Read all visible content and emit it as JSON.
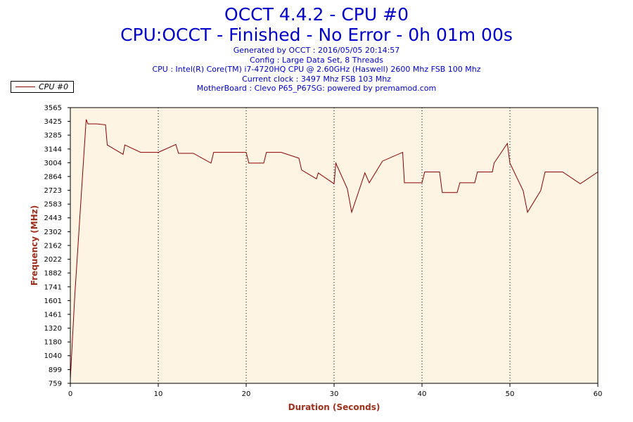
{
  "header": {
    "title": "OCCT 4.4.2 - CPU #0",
    "subtitle": "CPU:OCCT - Finished - No Error - 0h 01m 00s",
    "info": [
      "Generated by OCCT : 2016/05/05 20:14:57",
      "Config : Large Data Set, 8 Threads",
      "CPU : Intel(R) Core(TM) i7-4720HQ CPU @ 2.60GHz (Haswell) 2600 Mhz FSB 100 Mhz",
      "Current clock : 3497 Mhz FSB 103 Mhz",
      "MotherBoard : Clevo P65_P67SG: powered by premamod.com"
    ]
  },
  "legend": {
    "series_name": "CPU #0"
  },
  "colors": {
    "plot_bg": "#fdf4e3",
    "line": "#8b0000",
    "title": "#0000cc",
    "axis_label": "#a0301c"
  },
  "chart_data": {
    "type": "line",
    "title": "OCCT 4.4.2 - CPU #0",
    "xlabel": "Duration (Seconds)",
    "ylabel": "Frequency (MHz)",
    "xlim": [
      0,
      60
    ],
    "ylim": [
      759,
      3565
    ],
    "x_ticks": [
      0,
      10,
      20,
      30,
      40,
      50,
      60
    ],
    "y_ticks": [
      759,
      899,
      1040,
      1180,
      1320,
      1461,
      1601,
      1741,
      1882,
      2022,
      2162,
      2302,
      2443,
      2583,
      2723,
      2864,
      3004,
      3144,
      3285,
      3425,
      3565
    ],
    "grid": "vertical dotted",
    "legend_position": "top-left",
    "series": [
      {
        "name": "CPU #0",
        "x": [
          0,
          0.5,
          1.8,
          2,
          3,
          4,
          4.2,
          6,
          6.2,
          8,
          10,
          12,
          12.3,
          14,
          16,
          16.3,
          20,
          20.3,
          22,
          22.3,
          24,
          26,
          26.3,
          28,
          28.2,
          30,
          30.2,
          31.5,
          32,
          33.5,
          34,
          35.5,
          37.8,
          38,
          40,
          40.3,
          42,
          42.3,
          44,
          44.3,
          46,
          46.3,
          48,
          48.2,
          49.7,
          50,
          51.5,
          52,
          53.5,
          54,
          56,
          58,
          60
        ],
        "y": [
          800,
          1650,
          3445,
          3400,
          3400,
          3390,
          3185,
          3090,
          3185,
          3110,
          3110,
          3190,
          3100,
          3100,
          3000,
          3110,
          3110,
          3000,
          3000,
          3110,
          3110,
          3050,
          2930,
          2840,
          2900,
          2790,
          3000,
          2740,
          2500,
          2900,
          2800,
          3020,
          3110,
          2800,
          2800,
          2910,
          2910,
          2700,
          2700,
          2800,
          2800,
          2910,
          2910,
          3000,
          3200,
          3000,
          2720,
          2500,
          2720,
          2910,
          2910,
          2790,
          2910
        ]
      }
    ]
  }
}
